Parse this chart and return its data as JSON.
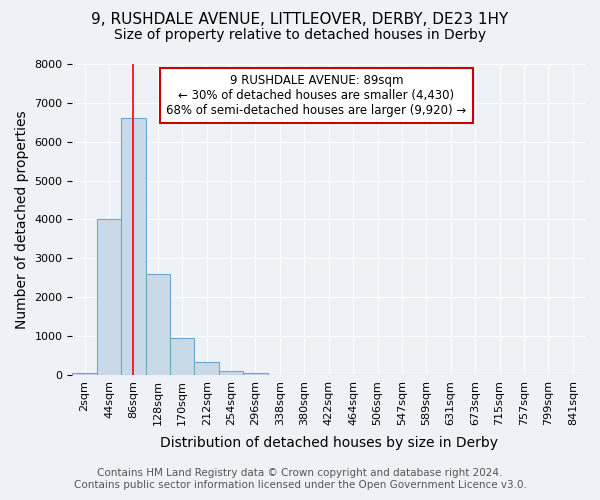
{
  "title": "9, RUSHDALE AVENUE, LITTLEOVER, DERBY, DE23 1HY",
  "subtitle": "Size of property relative to detached houses in Derby",
  "xlabel": "Distribution of detached houses by size in Derby",
  "ylabel": "Number of detached properties",
  "bin_labels": [
    "2sqm",
    "44sqm",
    "86sqm",
    "128sqm",
    "170sqm",
    "212sqm",
    "254sqm",
    "296sqm",
    "338sqm",
    "380sqm",
    "422sqm",
    "464sqm",
    "506sqm",
    "547sqm",
    "589sqm",
    "631sqm",
    "673sqm",
    "715sqm",
    "757sqm",
    "799sqm",
    "841sqm"
  ],
  "bin_values": [
    50,
    4000,
    6600,
    2600,
    950,
    325,
    110,
    50,
    0,
    0,
    0,
    0,
    0,
    0,
    0,
    0,
    0,
    0,
    0,
    0,
    0
  ],
  "bar_color": "#c9d9e8",
  "bar_edge_color": "#6fa8c8",
  "red_line_x_label": "86sqm",
  "annotation_title": "9 RUSHDALE AVENUE: 89sqm",
  "annotation_line1": "← 30% of detached houses are smaller (4,430)",
  "annotation_line2": "68% of semi-detached houses are larger (9,920) →",
  "annotation_box_color": "#ffffff",
  "annotation_border_color": "#cc0000",
  "ylim": [
    0,
    8000
  ],
  "yticks": [
    0,
    1000,
    2000,
    3000,
    4000,
    5000,
    6000,
    7000,
    8000
  ],
  "footer_line1": "Contains HM Land Registry data © Crown copyright and database right 2024.",
  "footer_line2": "Contains public sector information licensed under the Open Government Licence v3.0.",
  "bg_color": "#eef2f7",
  "plot_bg_color": "#eef2f7",
  "grid_color": "#ffffff",
  "title_fontsize": 11,
  "subtitle_fontsize": 10,
  "axis_label_fontsize": 10,
  "tick_fontsize": 8,
  "footer_fontsize": 7.5
}
